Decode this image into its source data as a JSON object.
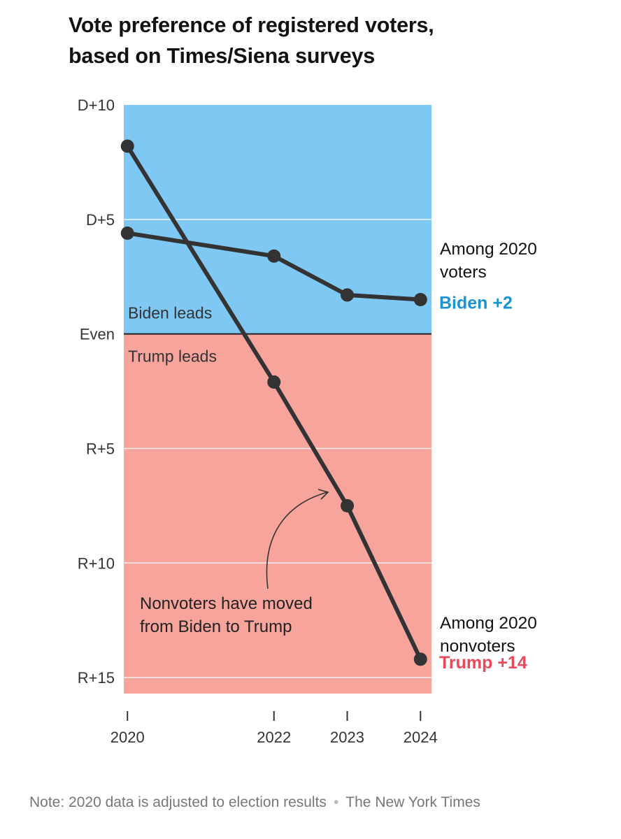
{
  "chart_data": {
    "type": "line",
    "title_line1": "Vote preference of registered voters,",
    "title_line2": "based on Times/Siena surveys",
    "ylim": [
      -15.7,
      10
    ],
    "y_ticks": [
      {
        "value": 10,
        "label": "D+10"
      },
      {
        "value": 5,
        "label": "D+5"
      },
      {
        "value": 0,
        "label": "Even"
      },
      {
        "value": -5,
        "label": "R+5"
      },
      {
        "value": -10,
        "label": "R+10"
      },
      {
        "value": -15,
        "label": "R+15"
      }
    ],
    "xlim": [
      2019.95,
      2024.15
    ],
    "x_ticks": [
      {
        "value": 2020,
        "label": "2020"
      },
      {
        "value": 2022,
        "label": "2022"
      },
      {
        "value": 2023,
        "label": "2023"
      },
      {
        "value": 2024,
        "label": "2024"
      }
    ],
    "regions": [
      {
        "name": "biden-region",
        "from": 0,
        "to": 10,
        "color": "#7ec8f3",
        "label": "Biden leads"
      },
      {
        "name": "trump-region",
        "from": -15.7,
        "to": 0,
        "color": "#f7a49d",
        "label": "Trump leads"
      }
    ],
    "series": [
      {
        "name": "Among 2020 voters",
        "label_lines": [
          "Among 2020",
          "voters"
        ],
        "x": [
          2020,
          2022,
          2023,
          2024
        ],
        "values": [
          4.4,
          3.4,
          1.7,
          1.5
        ],
        "end_label": "Biden +2",
        "end_label_color": "#1a93d0"
      },
      {
        "name": "Among 2020 nonvoters",
        "label_lines": [
          "Among 2020",
          "nonvoters"
        ],
        "x": [
          2020,
          2022,
          2023,
          2024
        ],
        "values": [
          8.2,
          -2.1,
          -7.5,
          -14.2
        ],
        "end_label": "Trump +14",
        "end_label_color": "#e8495b"
      }
    ],
    "line_color": "#333333",
    "annotation": {
      "lines": [
        "Nonvoters have moved",
        "from Biden to Trump"
      ]
    }
  },
  "footer": {
    "note": "Note: 2020 data is adjusted to election results",
    "separator": "•",
    "source": "The New York Times"
  }
}
